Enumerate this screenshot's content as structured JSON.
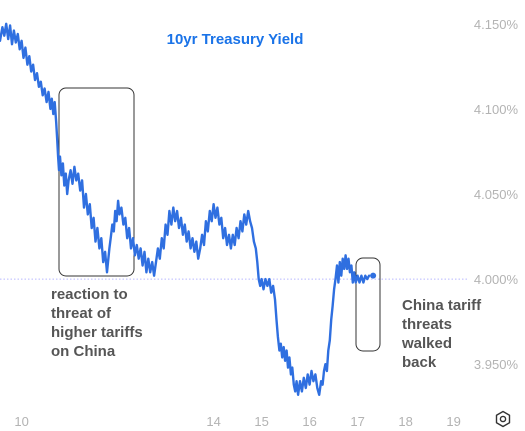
{
  "chart_data": {
    "type": "line",
    "title": "10yr Treasury Yield",
    "x_ticks": [
      {
        "value": 10,
        "label": "10"
      },
      {
        "value": 14,
        "label": "14"
      },
      {
        "value": 15,
        "label": "15"
      },
      {
        "value": 16,
        "label": "16"
      },
      {
        "value": 17,
        "label": "17"
      },
      {
        "value": 18,
        "label": "18"
      },
      {
        "value": 19,
        "label": "19"
      }
    ],
    "y_ticks": [
      {
        "value": 4.15,
        "label": "4.150%"
      },
      {
        "value": 4.1,
        "label": "4.100%"
      },
      {
        "value": 4.05,
        "label": "4.050%"
      },
      {
        "value": 4.0,
        "label": "4.000%"
      },
      {
        "value": 3.95,
        "label": "3.950%"
      }
    ],
    "xlim": [
      9.55,
      19.3
    ],
    "ylim": [
      3.926,
      4.164
    ],
    "reference_line": 4.0,
    "line_color": "#2f6fe0",
    "series": [
      {
        "points": [
          [
            9.55,
            4.14
          ],
          [
            9.6,
            4.148
          ],
          [
            9.64,
            4.143
          ],
          [
            9.68,
            4.15
          ],
          [
            9.72,
            4.141
          ],
          [
            9.76,
            4.149
          ],
          [
            9.8,
            4.138
          ],
          [
            9.84,
            4.146
          ],
          [
            9.88,
            4.139
          ],
          [
            9.92,
            4.144
          ],
          [
            9.96,
            4.135
          ],
          [
            10.0,
            4.14
          ],
          [
            10.04,
            4.13
          ],
          [
            10.08,
            4.136
          ],
          [
            10.12,
            4.126
          ],
          [
            10.16,
            4.131
          ],
          [
            10.2,
            4.122
          ],
          [
            10.24,
            4.126
          ],
          [
            10.28,
            4.117
          ],
          [
            10.32,
            4.121
          ],
          [
            10.36,
            4.113
          ],
          [
            10.4,
            4.116
          ],
          [
            10.44,
            4.108
          ],
          [
            10.48,
            4.112
          ],
          [
            10.52,
            4.104
          ],
          [
            10.56,
            4.11
          ],
          [
            10.6,
            4.1
          ],
          [
            10.63,
            4.106
          ],
          [
            10.66,
            4.097
          ],
          [
            10.69,
            4.104
          ],
          [
            10.72,
            4.092
          ],
          [
            10.74,
            4.083
          ],
          [
            10.76,
            4.072
          ],
          [
            10.78,
            4.064
          ],
          [
            10.8,
            4.072
          ],
          [
            10.83,
            4.061
          ],
          [
            10.86,
            4.068
          ],
          [
            10.89,
            4.055
          ],
          [
            10.92,
            4.062
          ],
          [
            10.95,
            4.05
          ],
          [
            10.98,
            4.058
          ],
          [
            11.02,
            4.064
          ],
          [
            11.06,
            4.056
          ],
          [
            11.1,
            4.066
          ],
          [
            11.14,
            4.058
          ],
          [
            11.18,
            4.062
          ],
          [
            11.22,
            4.052
          ],
          [
            11.26,
            4.058
          ],
          [
            11.3,
            4.042
          ],
          [
            11.34,
            4.05
          ],
          [
            11.38,
            4.038
          ],
          [
            11.42,
            4.044
          ],
          [
            11.46,
            4.03
          ],
          [
            11.5,
            4.036
          ],
          [
            11.54,
            4.022
          ],
          [
            11.58,
            4.03
          ],
          [
            11.62,
            4.018
          ],
          [
            11.66,
            4.024
          ],
          [
            11.7,
            4.01
          ],
          [
            11.74,
            4.016
          ],
          [
            11.78,
            4.004
          ],
          [
            11.8,
            4.01
          ],
          [
            11.83,
            4.018
          ],
          [
            11.86,
            4.025
          ],
          [
            11.89,
            4.032
          ],
          [
            11.92,
            4.028
          ],
          [
            11.95,
            4.04
          ],
          [
            11.98,
            4.034
          ],
          [
            12.01,
            4.046
          ],
          [
            12.04,
            4.038
          ],
          [
            12.08,
            4.042
          ],
          [
            12.12,
            4.032
          ],
          [
            12.16,
            4.036
          ],
          [
            12.2,
            4.024
          ],
          [
            12.24,
            4.03
          ],
          [
            12.28,
            4.018
          ],
          [
            12.32,
            4.024
          ],
          [
            12.36,
            4.014
          ],
          [
            12.4,
            4.02
          ],
          [
            12.44,
            4.012
          ],
          [
            12.48,
            4.018
          ],
          [
            12.52,
            4.008
          ],
          [
            12.56,
            4.016
          ],
          [
            12.6,
            4.004
          ],
          [
            12.64,
            4.012
          ],
          [
            12.68,
            4.004
          ],
          [
            12.72,
            4.01
          ],
          [
            12.76,
            4.002
          ],
          [
            12.8,
            4.01
          ],
          [
            12.84,
            4.018
          ],
          [
            12.88,
            4.012
          ],
          [
            12.92,
            4.024
          ],
          [
            12.96,
            4.018
          ],
          [
            13.0,
            4.032
          ],
          [
            13.04,
            4.026
          ],
          [
            13.08,
            4.04
          ],
          [
            13.12,
            4.032
          ],
          [
            13.16,
            4.042
          ],
          [
            13.2,
            4.034
          ],
          [
            13.24,
            4.04
          ],
          [
            13.28,
            4.03
          ],
          [
            13.32,
            4.036
          ],
          [
            13.36,
            4.026
          ],
          [
            13.4,
            4.032
          ],
          [
            13.44,
            4.022
          ],
          [
            13.48,
            4.028
          ],
          [
            13.52,
            4.018
          ],
          [
            13.56,
            4.024
          ],
          [
            13.6,
            4.016
          ],
          [
            13.64,
            4.022
          ],
          [
            13.68,
            4.012
          ],
          [
            13.72,
            4.018
          ],
          [
            13.76,
            4.026
          ],
          [
            13.8,
            4.02
          ],
          [
            13.84,
            4.034
          ],
          [
            13.88,
            4.028
          ],
          [
            13.92,
            4.04
          ],
          [
            13.96,
            4.034
          ],
          [
            14.0,
            4.044
          ],
          [
            14.04,
            4.036
          ],
          [
            14.08,
            4.042
          ],
          [
            14.12,
            4.032
          ],
          [
            14.16,
            4.036
          ],
          [
            14.2,
            4.024
          ],
          [
            14.24,
            4.03
          ],
          [
            14.28,
            4.02
          ],
          [
            14.32,
            4.026
          ],
          [
            14.36,
            4.018
          ],
          [
            14.4,
            4.026
          ],
          [
            14.44,
            4.02
          ],
          [
            14.48,
            4.03
          ],
          [
            14.52,
            4.024
          ],
          [
            14.56,
            4.034
          ],
          [
            14.6,
            4.028
          ],
          [
            14.64,
            4.038
          ],
          [
            14.68,
            4.032
          ],
          [
            14.72,
            4.04
          ],
          [
            14.76,
            4.034
          ],
          [
            14.8,
            4.03
          ],
          [
            14.84,
            4.022
          ],
          [
            14.88,
            4.018
          ],
          [
            14.91,
            4.01
          ],
          [
            14.94,
            4.0
          ],
          [
            14.97,
            3.996
          ],
          [
            15.0,
            4.0
          ],
          [
            15.04,
            3.994
          ],
          [
            15.08,
            4.0
          ],
          [
            15.12,
            3.996
          ],
          [
            15.16,
            4.0
          ],
          [
            15.2,
            3.992
          ],
          [
            15.24,
            3.996
          ],
          [
            15.28,
            3.988
          ],
          [
            15.31,
            3.976
          ],
          [
            15.34,
            3.966
          ],
          [
            15.37,
            3.958
          ],
          [
            15.4,
            3.962
          ],
          [
            15.43,
            3.954
          ],
          [
            15.46,
            3.96
          ],
          [
            15.49,
            3.952
          ],
          [
            15.52,
            3.958
          ],
          [
            15.55,
            3.948
          ],
          [
            15.58,
            3.954
          ],
          [
            15.61,
            3.944
          ],
          [
            15.64,
            3.948
          ],
          [
            15.67,
            3.938
          ],
          [
            15.7,
            3.934
          ],
          [
            15.73,
            3.94
          ],
          [
            15.76,
            3.932
          ],
          [
            15.8,
            3.94
          ],
          [
            15.84,
            3.934
          ],
          [
            15.88,
            3.942
          ],
          [
            15.92,
            3.936
          ],
          [
            15.96,
            3.944
          ],
          [
            16.0,
            3.938
          ],
          [
            16.04,
            3.946
          ],
          [
            16.08,
            3.94
          ],
          [
            16.12,
            3.944
          ],
          [
            16.16,
            3.936
          ],
          [
            16.2,
            3.932
          ],
          [
            16.24,
            3.94
          ],
          [
            16.27,
            3.938
          ],
          [
            16.3,
            3.946
          ],
          [
            16.33,
            3.95
          ],
          [
            16.36,
            3.946
          ],
          [
            16.39,
            3.958
          ],
          [
            16.42,
            3.964
          ],
          [
            16.45,
            3.976
          ],
          [
            16.48,
            3.984
          ],
          [
            16.51,
            3.994
          ],
          [
            16.54,
            4.0
          ],
          [
            16.57,
            4.008
          ],
          [
            16.6,
            3.998
          ],
          [
            16.63,
            4.01
          ],
          [
            16.66,
            4.002
          ],
          [
            16.69,
            4.012
          ],
          [
            16.72,
            4.006
          ],
          [
            16.75,
            4.014
          ],
          [
            16.78,
            4.006
          ],
          [
            16.81,
            4.012
          ],
          [
            16.84,
            4.004
          ],
          [
            16.87,
            4.008
          ],
          [
            16.9,
            3.998
          ],
          [
            16.93,
            4.004
          ],
          [
            16.96,
            3.998
          ],
          [
            17.0,
            4.002
          ],
          [
            17.04,
            3.998
          ],
          [
            17.08,
            4.002
          ],
          [
            17.12,
            3.998
          ],
          [
            17.16,
            4.002
          ],
          [
            17.2,
            4.0
          ],
          [
            17.24,
            4.002
          ]
        ]
      }
    ]
  },
  "annotations": {
    "left": [
      "reaction to",
      "threat of",
      "higher tariffs",
      "on China"
    ],
    "right": [
      "China tariff",
      "threats",
      "walked",
      "back"
    ]
  },
  "icons": {
    "settings": "settings-icon"
  }
}
